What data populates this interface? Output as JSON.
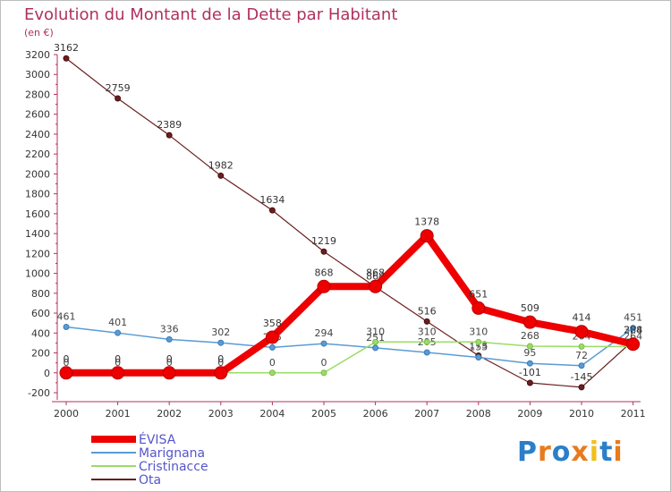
{
  "chart_data": {
    "type": "line",
    "title": "Evolution du Montant de la Dette par Habitant",
    "subtitle": "(en €)",
    "x": [
      "2000",
      "2001",
      "2002",
      "2003",
      "2004",
      "2005",
      "2006",
      "2007",
      "2008",
      "2009",
      "2010",
      "2011"
    ],
    "ylim": [
      -200,
      3200
    ],
    "yticks": [
      -200,
      0,
      200,
      400,
      600,
      800,
      1000,
      1200,
      1400,
      1600,
      1800,
      2000,
      2200,
      2400,
      2600,
      2800,
      3000,
      3200
    ],
    "grid": false,
    "legend_position": "bottom-left",
    "series": [
      {
        "name": "ÉVISA",
        "color": "#ee0000",
        "values": [
          0,
          0,
          0,
          0,
          358,
          868,
          868,
          1378,
          651,
          509,
          414,
          288
        ]
      },
      {
        "name": "Marignana",
        "color": "#5b9bd5",
        "values": [
          461,
          401,
          336,
          302,
          255,
          294,
          251,
          205,
          155,
          95,
          72,
          451
        ]
      },
      {
        "name": "Cristinacce",
        "color": "#99dd66",
        "values": [
          0,
          0,
          0,
          0,
          0,
          0,
          310,
          310,
          310,
          268,
          264,
          264
        ]
      },
      {
        "name": "Ota",
        "color": "#6b1e1e",
        "values": [
          3162,
          2759,
          2389,
          1982,
          1634,
          1219,
          864,
          516,
          173,
          -101,
          -145,
          324
        ]
      }
    ]
  },
  "brand": {
    "letters": [
      "P",
      "r",
      "o",
      "x",
      "i",
      "t",
      "i"
    ],
    "colors": [
      "#2a7fc8",
      "#e87b1c",
      "#2a7fc8",
      "#e87b1c",
      "#f0c020",
      "#2a7fc8",
      "#e87b1c"
    ]
  }
}
